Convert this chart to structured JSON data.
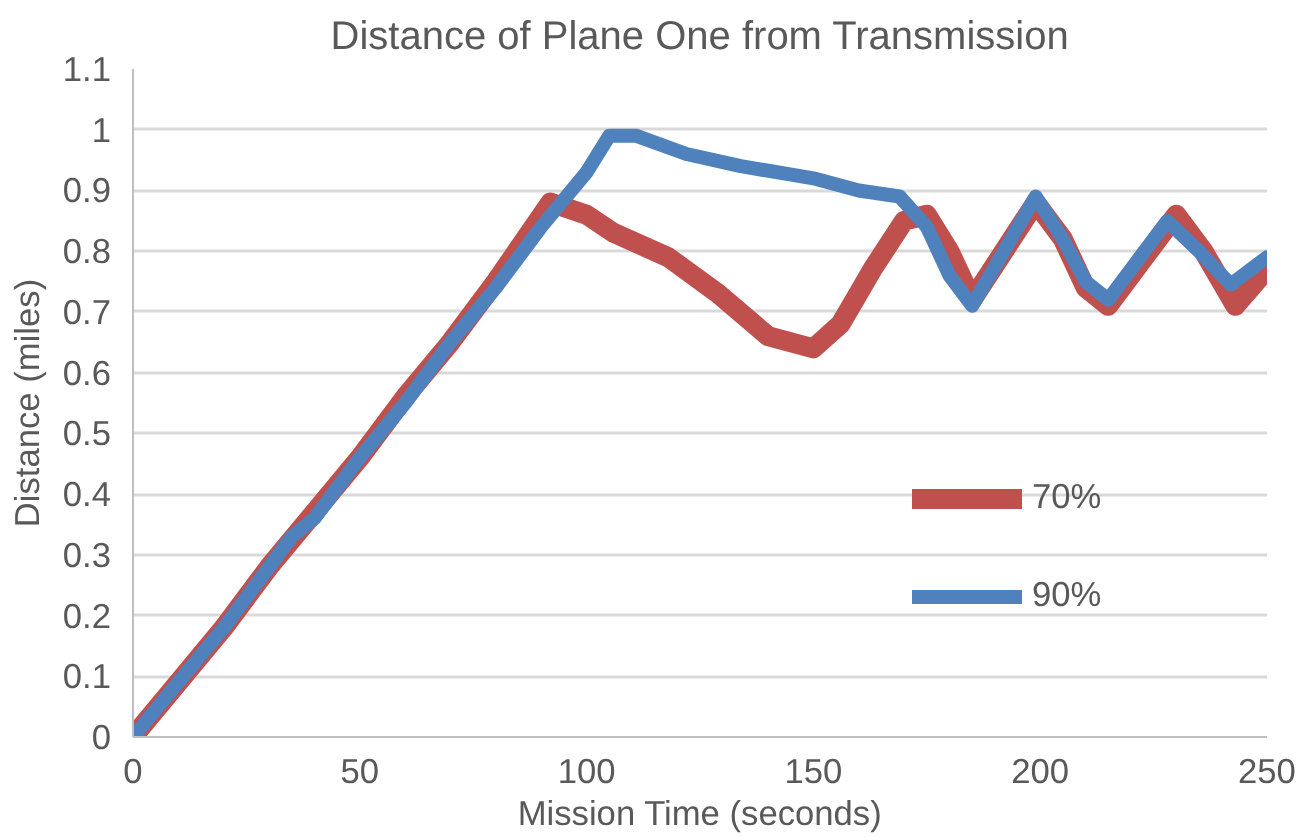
{
  "chart_data": {
    "type": "line",
    "title": "Distance of Plane One from Transmission",
    "xlabel": "Mission Time (seconds)",
    "ylabel": "Distance (miles)",
    "series": [
      {
        "name": "70%",
        "color": "#c0504d",
        "x": [
          0,
          10,
          20,
          30,
          40,
          50,
          60,
          70,
          80,
          92,
          100,
          106,
          118,
          129,
          140,
          150,
          156,
          163,
          170,
          175,
          180,
          185,
          192,
          199,
          205,
          210,
          215,
          222,
          230,
          236,
          243,
          250
        ],
        "values": [
          0,
          0.09,
          0.18,
          0.28,
          0.37,
          0.46,
          0.56,
          0.65,
          0.75,
          0.88,
          0.86,
          0.83,
          0.79,
          0.73,
          0.66,
          0.64,
          0.68,
          0.77,
          0.85,
          0.86,
          0.8,
          0.72,
          0.8,
          0.88,
          0.82,
          0.74,
          0.71,
          0.78,
          0.86,
          0.8,
          0.71,
          0.77
        ]
      },
      {
        "name": "90%",
        "color": "#4f81bd",
        "x": [
          0,
          10,
          20,
          30,
          35,
          40,
          50,
          60,
          70,
          80,
          90,
          100,
          105,
          111,
          122,
          134,
          150,
          160,
          169,
          175,
          180,
          185,
          192,
          199,
          205,
          210,
          215,
          222,
          228,
          235,
          242,
          250
        ],
        "values": [
          0,
          0.09,
          0.18,
          0.28,
          0.33,
          0.36,
          0.46,
          0.55,
          0.65,
          0.74,
          0.84,
          0.93,
          0.99,
          0.99,
          0.96,
          0.94,
          0.92,
          0.9,
          0.89,
          0.84,
          0.76,
          0.71,
          0.8,
          0.89,
          0.82,
          0.75,
          0.72,
          0.79,
          0.85,
          0.8,
          0.745,
          0.79
        ]
      }
    ],
    "xlim": [
      0,
      250
    ],
    "xticks": [
      0,
      50,
      100,
      150,
      200,
      250
    ],
    "ylim": [
      0,
      1.1
    ],
    "yticks": [
      0,
      0.1,
      0.2,
      0.3,
      0.4,
      0.5,
      0.6,
      0.7,
      0.8,
      0.9,
      1,
      1.1
    ],
    "grid": "y",
    "legend": "right",
    "marker": "none",
    "line_style": "solid"
  }
}
